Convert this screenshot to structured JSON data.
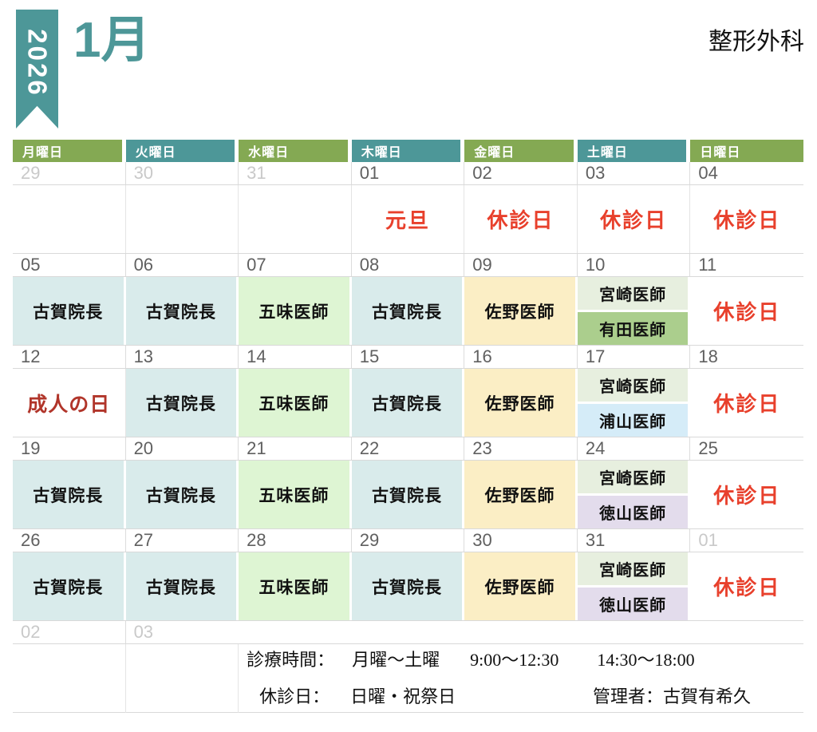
{
  "header": {
    "year": "2026",
    "month": "1月",
    "department": "整形外科"
  },
  "colors": {
    "teal": "#4d9798",
    "green": "#84a953",
    "lightBlue": "#d9ebeb",
    "lightGreen": "#def5d3",
    "cream": "#fbeec5",
    "paleGreen": "#e7efdf",
    "midGreen": "#abce8d",
    "paleBlue": "#d5ecf8",
    "palePurple": "#e3dcec",
    "red": "#e8402c",
    "darkRed": "#b1352a"
  },
  "day_headers": [
    {
      "label": "月曜日",
      "style": "green"
    },
    {
      "label": "火曜日",
      "style": "teal"
    },
    {
      "label": "水曜日",
      "style": "green"
    },
    {
      "label": "木曜日",
      "style": "teal"
    },
    {
      "label": "金曜日",
      "style": "green"
    },
    {
      "label": "土曜日",
      "style": "teal"
    },
    {
      "label": "日曜日",
      "style": "green"
    }
  ],
  "weeks": [
    {
      "days": [
        {
          "date": "29",
          "muted": true,
          "type": "empty"
        },
        {
          "date": "30",
          "muted": true,
          "type": "empty"
        },
        {
          "date": "31",
          "muted": true,
          "type": "empty"
        },
        {
          "date": "01",
          "type": "holiday",
          "label": "元旦"
        },
        {
          "date": "02",
          "type": "closed",
          "label": "休診日"
        },
        {
          "date": "03",
          "type": "closed",
          "label": "休診日"
        },
        {
          "date": "04",
          "type": "closed",
          "label": "休診日"
        }
      ]
    },
    {
      "days": [
        {
          "date": "05",
          "type": "doctor",
          "label": "古賀院長",
          "bg": "lightBlue"
        },
        {
          "date": "06",
          "type": "doctor",
          "label": "古賀院長",
          "bg": "lightBlue"
        },
        {
          "date": "07",
          "type": "doctor",
          "label": "五味医師",
          "bg": "lightGreen"
        },
        {
          "date": "08",
          "type": "doctor",
          "label": "古賀院長",
          "bg": "lightBlue"
        },
        {
          "date": "09",
          "type": "doctor",
          "label": "佐野医師",
          "bg": "cream"
        },
        {
          "date": "10",
          "type": "split",
          "top": {
            "label": "宮崎医師",
            "bg": "paleGreen"
          },
          "bottom": {
            "label": "有田医師",
            "bg": "midGreen"
          }
        },
        {
          "date": "11",
          "type": "closed",
          "label": "休診日"
        }
      ]
    },
    {
      "days": [
        {
          "date": "12",
          "type": "holiday2",
          "label": "成人の日"
        },
        {
          "date": "13",
          "type": "doctor",
          "label": "古賀院長",
          "bg": "lightBlue"
        },
        {
          "date": "14",
          "type": "doctor",
          "label": "五味医師",
          "bg": "lightGreen"
        },
        {
          "date": "15",
          "type": "doctor",
          "label": "古賀院長",
          "bg": "lightBlue"
        },
        {
          "date": "16",
          "type": "doctor",
          "label": "佐野医師",
          "bg": "cream"
        },
        {
          "date": "17",
          "type": "split",
          "top": {
            "label": "宮崎医師",
            "bg": "paleGreen"
          },
          "bottom": {
            "label": "浦山医師",
            "bg": "paleBlue"
          }
        },
        {
          "date": "18",
          "type": "closed",
          "label": "休診日"
        }
      ]
    },
    {
      "days": [
        {
          "date": "19",
          "type": "doctor",
          "label": "古賀院長",
          "bg": "lightBlue"
        },
        {
          "date": "20",
          "type": "doctor",
          "label": "古賀院長",
          "bg": "lightBlue"
        },
        {
          "date": "21",
          "type": "doctor",
          "label": "五味医師",
          "bg": "lightGreen"
        },
        {
          "date": "22",
          "type": "doctor",
          "label": "古賀院長",
          "bg": "lightBlue"
        },
        {
          "date": "23",
          "type": "doctor",
          "label": "佐野医師",
          "bg": "cream"
        },
        {
          "date": "24",
          "type": "split",
          "top": {
            "label": "宮崎医師",
            "bg": "paleGreen"
          },
          "bottom": {
            "label": "徳山医師",
            "bg": "palePurple"
          }
        },
        {
          "date": "25",
          "type": "closed",
          "label": "休診日"
        }
      ]
    },
    {
      "days": [
        {
          "date": "26",
          "type": "doctor",
          "label": "古賀院長",
          "bg": "lightBlue"
        },
        {
          "date": "27",
          "type": "doctor",
          "label": "古賀院長",
          "bg": "lightBlue"
        },
        {
          "date": "28",
          "type": "doctor",
          "label": "五味医師",
          "bg": "lightGreen"
        },
        {
          "date": "29",
          "type": "doctor",
          "label": "古賀院長",
          "bg": "lightBlue"
        },
        {
          "date": "30",
          "type": "doctor",
          "label": "佐野医師",
          "bg": "cream"
        },
        {
          "date": "31",
          "type": "split",
          "top": {
            "label": "宮崎医師",
            "bg": "paleGreen"
          },
          "bottom": {
            "label": "徳山医師",
            "bg": "palePurple"
          }
        },
        {
          "date": "01",
          "muted": true,
          "type": "closed",
          "label": "休診日"
        }
      ]
    },
    {
      "days": [
        {
          "date": "02",
          "muted": true,
          "type": "empty"
        },
        {
          "date": "03",
          "muted": true,
          "type": "empty"
        },
        {
          "type": "footer",
          "span": 5
        }
      ]
    }
  ],
  "footer": {
    "hours_label": "診療時間：",
    "hours_days": "月曜〜土曜",
    "hours_am": "9:00〜12:30",
    "hours_pm": "14:30〜18:00",
    "closed_label": "休診日：",
    "closed_days": "日曜・祝祭日",
    "manager": "管理者：古賀有希久"
  }
}
